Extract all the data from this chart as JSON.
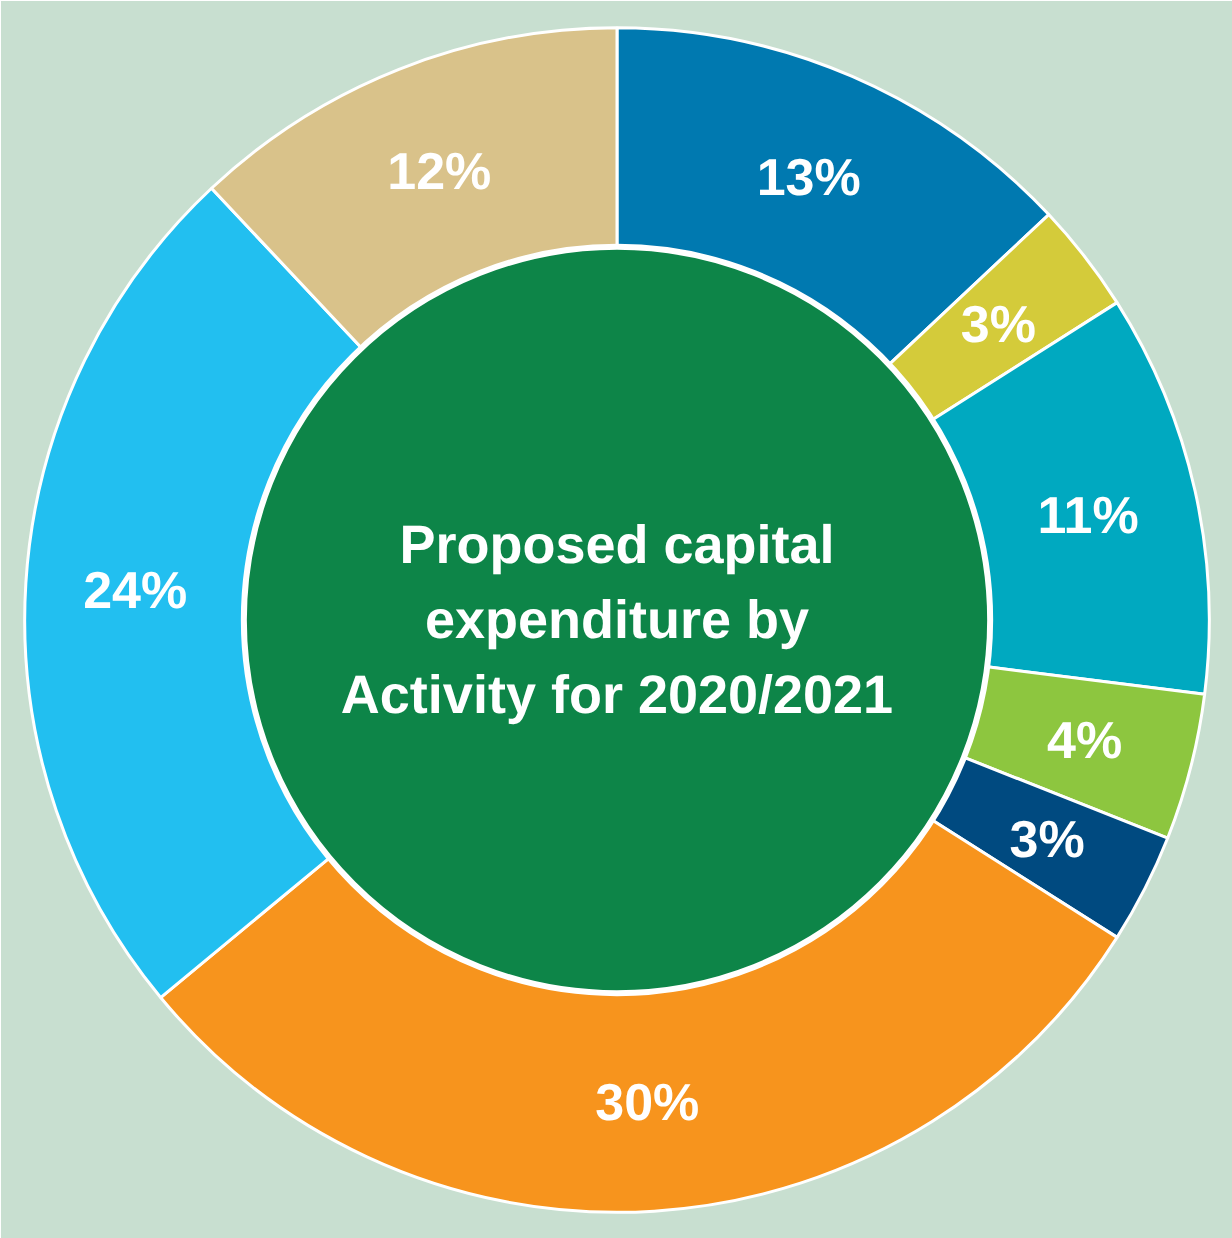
{
  "chart_data": {
    "type": "donut",
    "title": "Proposed capital expenditure by Activity for 2020/2021",
    "categories": [
      null,
      null,
      null,
      null,
      null,
      null,
      null,
      null
    ],
    "values": [
      13,
      3,
      11,
      4,
      3,
      30,
      24,
      12
    ],
    "value_labels": [
      "13%",
      "3%",
      "11%",
      "4%",
      "3%",
      "30%",
      "24%",
      "12%"
    ],
    "colors": [
      "#0079b0",
      "#d4cb3a",
      "#00a9c0",
      "#8dc63f",
      "#004a80",
      "#f7941d",
      "#22bff0",
      "#d9c28a"
    ]
  }
}
